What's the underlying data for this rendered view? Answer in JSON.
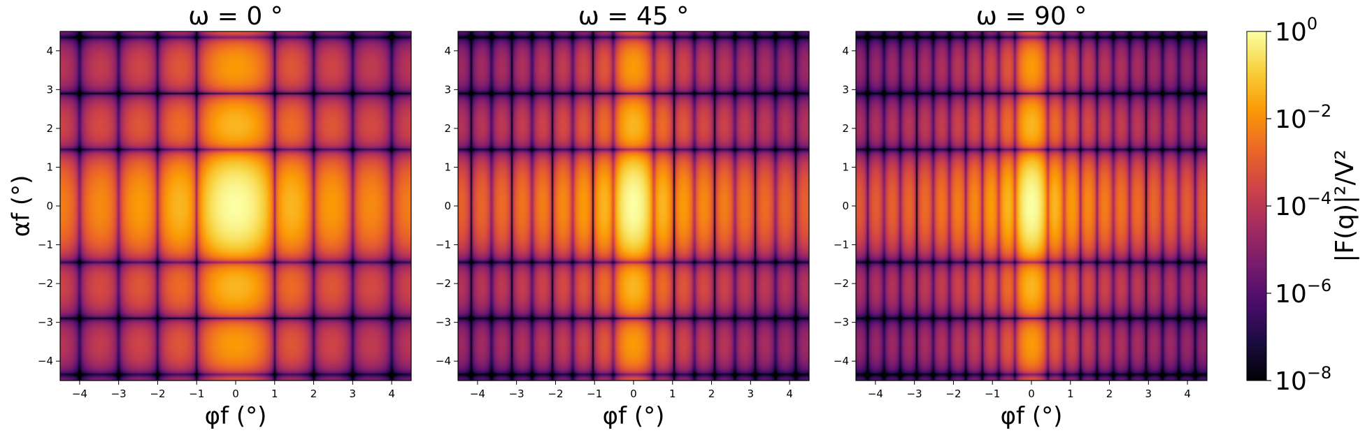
{
  "chart_data": [
    {
      "type": "heatmap",
      "title": "ω = 0 °",
      "omega_deg": 0,
      "xlabel": "φf (°)",
      "ylabel": "αf (°)",
      "xlim": [
        -4.5,
        4.5
      ],
      "ylim": [
        -4.5,
        4.5
      ],
      "xticks": [
        -4,
        -3,
        -2,
        -1,
        0,
        1,
        2,
        3,
        4
      ],
      "yticks": [
        -4,
        -3,
        -2,
        -1,
        0,
        1,
        2,
        3,
        4
      ],
      "x_fringe_period_deg": 1.0,
      "y_fringe_period_deg": 1.45,
      "peak_at": [
        0,
        0
      ],
      "peak_value": 1.0
    },
    {
      "type": "heatmap",
      "title": "ω = 45 °",
      "omega_deg": 45,
      "xlabel": "φf (°)",
      "ylabel": "",
      "xlim": [
        -4.5,
        4.5
      ],
      "ylim": [
        -4.5,
        4.5
      ],
      "xticks": [
        -4,
        -3,
        -2,
        -1,
        0,
        1,
        2,
        3,
        4
      ],
      "yticks": [
        -4,
        -3,
        -2,
        -1,
        0,
        1,
        2,
        3,
        4
      ],
      "x_fringe_period_deg": 0.52,
      "y_fringe_period_deg": 1.45,
      "peak_at": [
        0,
        0
      ],
      "peak_value": 1.0
    },
    {
      "type": "heatmap",
      "title": "ω = 90 °",
      "omega_deg": 90,
      "xlabel": "φf (°)",
      "ylabel": "",
      "xlim": [
        -4.5,
        4.5
      ],
      "ylim": [
        -4.5,
        4.5
      ],
      "xticks": [
        -4,
        -3,
        -2,
        -1,
        0,
        1,
        2,
        3,
        4
      ],
      "yticks": [
        -4,
        -3,
        -2,
        -1,
        0,
        1,
        2,
        3,
        4
      ],
      "x_fringe_period_deg": 0.42,
      "y_fringe_period_deg": 1.45,
      "peak_at": [
        0,
        0
      ],
      "peak_value": 1.0
    }
  ],
  "colorbar": {
    "label": "|F(q)|²/V²",
    "scale": "log",
    "colormap": "inferno",
    "range": [
      1e-08,
      1
    ],
    "ticks": [
      {
        "value": 1,
        "mantissa": "10",
        "exponent": "0"
      },
      {
        "value": 0.01,
        "mantissa": "10",
        "exponent": "−2"
      },
      {
        "value": 0.0001,
        "mantissa": "10",
        "exponent": "−4"
      },
      {
        "value": 1e-06,
        "mantissa": "10",
        "exponent": "−6"
      },
      {
        "value": 1e-08,
        "mantissa": "10",
        "exponent": "−8"
      }
    ]
  },
  "tick_text": {
    "-4": "−4",
    "-3": "−3",
    "-2": "−2",
    "-1": "−1",
    "0": "0",
    "1": "1",
    "2": "2",
    "3": "3",
    "4": "4"
  },
  "colors": {
    "inferno_stops": [
      "#000004",
      "#1b0c41",
      "#4a0c6b",
      "#781c6d",
      "#a52c60",
      "#cf4446",
      "#ed6925",
      "#fb9b06",
      "#f7d13d",
      "#fcffa4"
    ]
  }
}
